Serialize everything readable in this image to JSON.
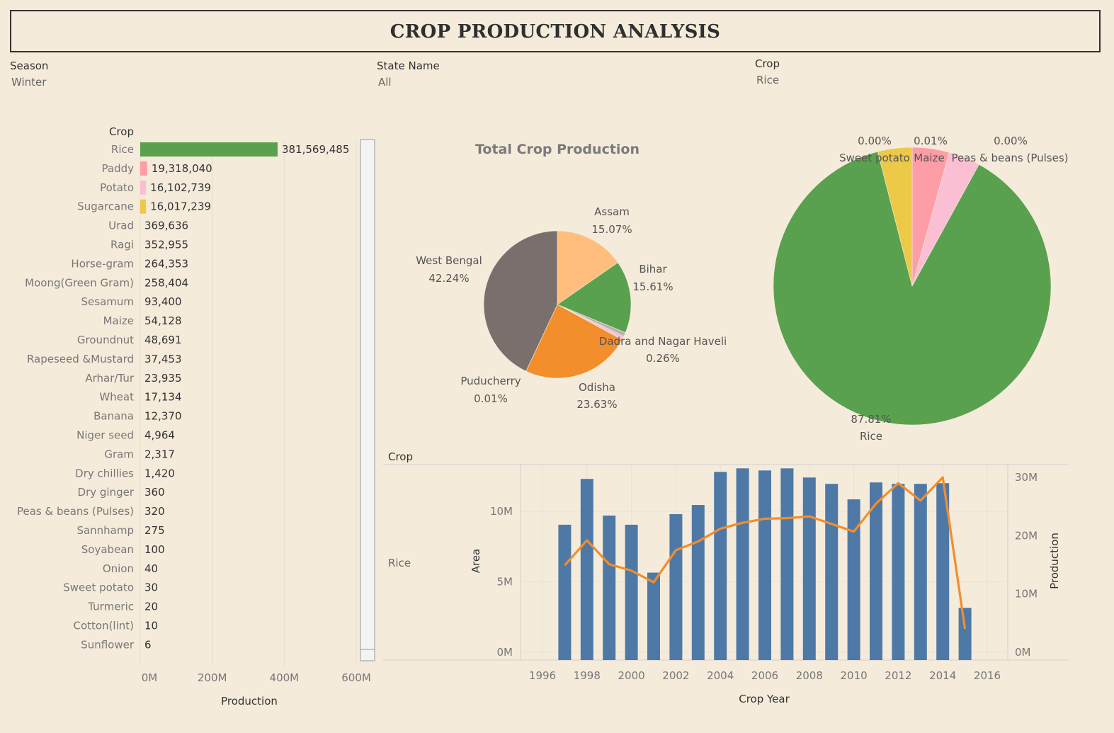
{
  "page": {
    "title": "CROP PRODUCTION ANALYSIS"
  },
  "filters": [
    {
      "label": "Season",
      "value": "Winter"
    },
    {
      "label": "State Name",
      "value": "All"
    },
    {
      "label": "Crop",
      "value": "Rice"
    }
  ],
  "chart_data": [
    {
      "type": "bar",
      "orientation": "horizontal",
      "ylabel": "Crop",
      "xlabel": "Production",
      "xlim": [
        0,
        600000000
      ],
      "xticks": [
        "0M",
        "200M",
        "400M",
        "600M"
      ],
      "grid": true,
      "categories": [
        "Rice",
        "Paddy",
        "Potato",
        "Sugarcane",
        "Urad",
        "Ragi",
        "Horse-gram",
        "Moong(Green Gram)",
        "Sesamum",
        "Maize",
        "Groundnut",
        "Rapeseed &Mustard",
        "Arhar/Tur",
        "Wheat",
        "Banana",
        "Niger seed",
        "Gram",
        "Dry chillies",
        "Dry ginger",
        "Peas & beans (Pulses)",
        "Sannhamp",
        "Soyabean",
        "Onion",
        "Sweet potato",
        "Turmeric",
        "Cotton(lint)",
        "Sunflower"
      ],
      "values": [
        381569485,
        19318040,
        16102739,
        16017239,
        369636,
        352955,
        264353,
        258404,
        93400,
        54128,
        48691,
        37453,
        23935,
        17134,
        12370,
        4964,
        2317,
        1420,
        360,
        320,
        275,
        100,
        40,
        30,
        20,
        10,
        6
      ],
      "value_labels": [
        "381,569,485",
        "19,318,040",
        "16,102,739",
        "16,017,239",
        "369,636",
        "352,955",
        "264,353",
        "258,404",
        "93,400",
        "54,128",
        "48,691",
        "37,453",
        "23,935",
        "17,134",
        "12,370",
        "4,964",
        "2,317",
        "1,420",
        "360",
        "320",
        "275",
        "100",
        "40",
        "30",
        "20",
        "10",
        "6"
      ],
      "colors": [
        "#59a14f",
        "#ff9da7",
        "#fabfd2",
        "#edc948",
        "#59a14f",
        "#59a14f",
        "#59a14f",
        "#59a14f",
        "#59a14f",
        "#59a14f",
        "#59a14f",
        "#59a14f",
        "#59a14f",
        "#59a14f",
        "#59a14f",
        "#59a14f",
        "#59a14f",
        "#59a14f",
        "#59a14f",
        "#59a14f",
        "#59a14f",
        "#59a14f",
        "#59a14f",
        "#59a14f",
        "#59a14f",
        "#59a14f",
        "#59a14f"
      ]
    },
    {
      "type": "pie",
      "title": "Total Crop Production",
      "slices": [
        {
          "label": "Assam",
          "percent": 15.07,
          "percent_label": "15.07%",
          "color": "#ffbe7d"
        },
        {
          "label": "Bihar",
          "percent": 15.61,
          "percent_label": "15.61%",
          "color": "#59a14f"
        },
        {
          "label": "",
          "percent": 0.8,
          "percent_label": "",
          "color": "#bab0ac"
        },
        {
          "label": "Dadra and Nagar Haveli",
          "percent": 0.26,
          "percent_label": "0.26%",
          "color": "#d4a6c8"
        },
        {
          "label": "",
          "percent": 0.6,
          "percent_label": "",
          "color": "#fabfd2"
        },
        {
          "label": "Odisha",
          "percent": 23.63,
          "percent_label": "23.63%",
          "color": "#f28e2b"
        },
        {
          "label": "Puducherry",
          "percent": 0.01,
          "percent_label": "0.01%",
          "color": "#e15759"
        },
        {
          "label": "West Bengal",
          "percent": 42.24,
          "percent_label": "42.24%",
          "color": "#79706e"
        }
      ]
    },
    {
      "type": "pie",
      "slices": [
        {
          "label": "Maize",
          "percent": 0.01,
          "percent_label": "0.01%",
          "color": "#ff9da7",
          "share": 4.3
        },
        {
          "label": "Peas & beans (Pulses)",
          "percent": 0.0,
          "percent_label": "0.00%",
          "color": "#fabfd2",
          "share": 3.7
        },
        {
          "label": "Rice",
          "percent": 87.81,
          "percent_label": "87.81%",
          "color": "#59a14f",
          "share": 88.0
        },
        {
          "label": "Sweet potato",
          "percent": 0.0,
          "percent_label": "0.00%",
          "color": "#edc948",
          "share": 4.0
        }
      ]
    },
    {
      "type": "bar+line",
      "row_header": "Crop",
      "row_label": "Rice",
      "xlabel": "Crop Year",
      "x_ticks": [
        "1996",
        "1998",
        "2000",
        "2002",
        "2004",
        "2006",
        "2008",
        "2010",
        "2012",
        "2014",
        "2016"
      ],
      "xlim": [
        1995,
        2018
      ],
      "y_left": {
        "label": "Area",
        "ticks": [
          "0M",
          "5M",
          "10M"
        ],
        "lim": [
          0,
          13700000
        ]
      },
      "y_right": {
        "label": "Production",
        "ticks": [
          "0M",
          "10M",
          "20M",
          "30M"
        ],
        "lim": [
          0,
          32000000
        ]
      },
      "x": [
        1997,
        1998,
        1999,
        2000,
        2001,
        2002,
        2003,
        2004,
        2005,
        2006,
        2007,
        2008,
        2009,
        2010,
        2011,
        2012,
        2013,
        2014,
        2015
      ],
      "series": [
        {
          "name": "Area",
          "kind": "bar",
          "color": "#4e79a7",
          "values": [
            9050000,
            12300000,
            9700000,
            9050000,
            5650000,
            9800000,
            10450000,
            12800000,
            13050000,
            12900000,
            13050000,
            12400000,
            11950000,
            10850000,
            12050000,
            11950000,
            11950000,
            12000000,
            3150000
          ]
        },
        {
          "name": "Production",
          "kind": "line",
          "color": "#f28e2b",
          "values": [
            14900000,
            19200000,
            15100000,
            14000000,
            12000000,
            17500000,
            19000000,
            21200000,
            22200000,
            22900000,
            23000000,
            23300000,
            22000000,
            20700000,
            25500000,
            29000000,
            26000000,
            30000000,
            4000000
          ]
        }
      ]
    }
  ]
}
